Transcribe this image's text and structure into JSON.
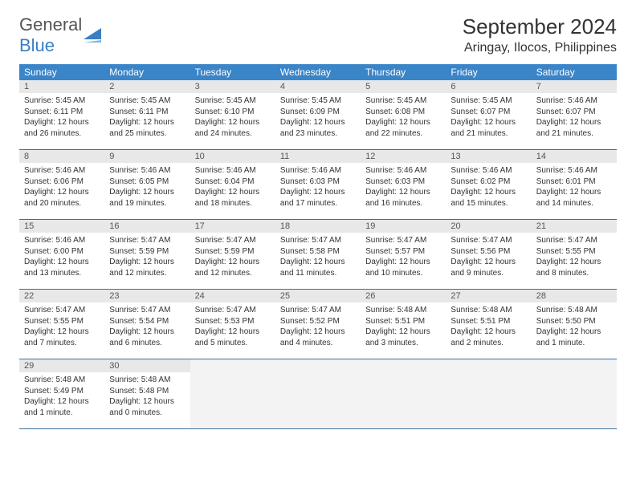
{
  "brand": {
    "word1": "General",
    "word2": "Blue"
  },
  "title": "September 2024",
  "location": "Aringay, Ilocos, Philippines",
  "colors": {
    "header_bg": "#3a84c8",
    "header_text": "#ffffff",
    "daynum_bg": "#e8e8e8",
    "week_border": "#3a6fa0",
    "brand_blue": "#3a7fc4",
    "text": "#333333",
    "empty_bg": "#f3f3f3"
  },
  "weekdays": [
    "Sunday",
    "Monday",
    "Tuesday",
    "Wednesday",
    "Thursday",
    "Friday",
    "Saturday"
  ],
  "weeks": [
    [
      {
        "n": "1",
        "sr": "5:45 AM",
        "ss": "6:11 PM",
        "dl": "12 hours and 26 minutes."
      },
      {
        "n": "2",
        "sr": "5:45 AM",
        "ss": "6:11 PM",
        "dl": "12 hours and 25 minutes."
      },
      {
        "n": "3",
        "sr": "5:45 AM",
        "ss": "6:10 PM",
        "dl": "12 hours and 24 minutes."
      },
      {
        "n": "4",
        "sr": "5:45 AM",
        "ss": "6:09 PM",
        "dl": "12 hours and 23 minutes."
      },
      {
        "n": "5",
        "sr": "5:45 AM",
        "ss": "6:08 PM",
        "dl": "12 hours and 22 minutes."
      },
      {
        "n": "6",
        "sr": "5:45 AM",
        "ss": "6:07 PM",
        "dl": "12 hours and 21 minutes."
      },
      {
        "n": "7",
        "sr": "5:46 AM",
        "ss": "6:07 PM",
        "dl": "12 hours and 21 minutes."
      }
    ],
    [
      {
        "n": "8",
        "sr": "5:46 AM",
        "ss": "6:06 PM",
        "dl": "12 hours and 20 minutes."
      },
      {
        "n": "9",
        "sr": "5:46 AM",
        "ss": "6:05 PM",
        "dl": "12 hours and 19 minutes."
      },
      {
        "n": "10",
        "sr": "5:46 AM",
        "ss": "6:04 PM",
        "dl": "12 hours and 18 minutes."
      },
      {
        "n": "11",
        "sr": "5:46 AM",
        "ss": "6:03 PM",
        "dl": "12 hours and 17 minutes."
      },
      {
        "n": "12",
        "sr": "5:46 AM",
        "ss": "6:03 PM",
        "dl": "12 hours and 16 minutes."
      },
      {
        "n": "13",
        "sr": "5:46 AM",
        "ss": "6:02 PM",
        "dl": "12 hours and 15 minutes."
      },
      {
        "n": "14",
        "sr": "5:46 AM",
        "ss": "6:01 PM",
        "dl": "12 hours and 14 minutes."
      }
    ],
    [
      {
        "n": "15",
        "sr": "5:46 AM",
        "ss": "6:00 PM",
        "dl": "12 hours and 13 minutes."
      },
      {
        "n": "16",
        "sr": "5:47 AM",
        "ss": "5:59 PM",
        "dl": "12 hours and 12 minutes."
      },
      {
        "n": "17",
        "sr": "5:47 AM",
        "ss": "5:59 PM",
        "dl": "12 hours and 12 minutes."
      },
      {
        "n": "18",
        "sr": "5:47 AM",
        "ss": "5:58 PM",
        "dl": "12 hours and 11 minutes."
      },
      {
        "n": "19",
        "sr": "5:47 AM",
        "ss": "5:57 PM",
        "dl": "12 hours and 10 minutes."
      },
      {
        "n": "20",
        "sr": "5:47 AM",
        "ss": "5:56 PM",
        "dl": "12 hours and 9 minutes."
      },
      {
        "n": "21",
        "sr": "5:47 AM",
        "ss": "5:55 PM",
        "dl": "12 hours and 8 minutes."
      }
    ],
    [
      {
        "n": "22",
        "sr": "5:47 AM",
        "ss": "5:55 PM",
        "dl": "12 hours and 7 minutes."
      },
      {
        "n": "23",
        "sr": "5:47 AM",
        "ss": "5:54 PM",
        "dl": "12 hours and 6 minutes."
      },
      {
        "n": "24",
        "sr": "5:47 AM",
        "ss": "5:53 PM",
        "dl": "12 hours and 5 minutes."
      },
      {
        "n": "25",
        "sr": "5:47 AM",
        "ss": "5:52 PM",
        "dl": "12 hours and 4 minutes."
      },
      {
        "n": "26",
        "sr": "5:48 AM",
        "ss": "5:51 PM",
        "dl": "12 hours and 3 minutes."
      },
      {
        "n": "27",
        "sr": "5:48 AM",
        "ss": "5:51 PM",
        "dl": "12 hours and 2 minutes."
      },
      {
        "n": "28",
        "sr": "5:48 AM",
        "ss": "5:50 PM",
        "dl": "12 hours and 1 minute."
      }
    ],
    [
      {
        "n": "29",
        "sr": "5:48 AM",
        "ss": "5:49 PM",
        "dl": "12 hours and 1 minute."
      },
      {
        "n": "30",
        "sr": "5:48 AM",
        "ss": "5:48 PM",
        "dl": "12 hours and 0 minutes."
      },
      null,
      null,
      null,
      null,
      null
    ]
  ],
  "labels": {
    "sunrise": "Sunrise:",
    "sunset": "Sunset:",
    "daylight": "Daylight:"
  }
}
